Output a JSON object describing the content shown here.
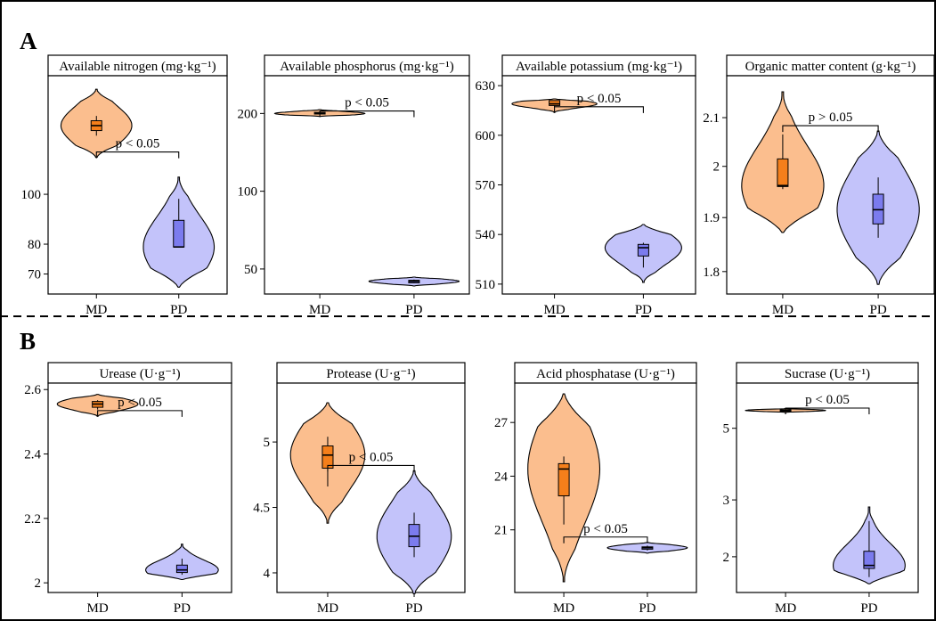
{
  "sections": [
    {
      "label": "A"
    },
    {
      "label": "B"
    }
  ],
  "colors": {
    "md_fill": "#FBBE8E",
    "pd_fill": "#C3C3FA",
    "md_box": "#F57F1B",
    "pd_box": "#7B7BEE",
    "line": "#000000"
  },
  "chart_data": [
    {
      "type": "violin",
      "title": "Available nitrogen (mg·kg⁻¹)",
      "categories": [
        "MD",
        "PD"
      ],
      "yticks": [
        70,
        80,
        100
      ],
      "yscale": "log",
      "ylim": [
        64,
        170
      ],
      "annotation": "p < 0.05",
      "series": [
        {
          "category": "MD",
          "violin_min": 118,
          "violin_max": 160,
          "box": {
            "min": 130,
            "q1": 133,
            "median": 136,
            "q3": 139,
            "max": 142
          }
        },
        {
          "category": "PD",
          "violin_min": 66,
          "violin_max": 108,
          "box": {
            "min": 79,
            "q1": 79,
            "median": 79,
            "q3": 89,
            "max": 98
          }
        }
      ]
    },
    {
      "type": "violin",
      "title": "Available phosphorus (mg·kg⁻¹)",
      "categories": [
        "MD",
        "PD"
      ],
      "yticks": [
        50,
        100,
        200
      ],
      "yscale": "log",
      "ylim": [
        40,
        280
      ],
      "annotation": "p < 0.05",
      "series": [
        {
          "category": "MD",
          "violin_min": 195,
          "violin_max": 207,
          "box": {
            "min": 199,
            "q1": 199,
            "median": 200,
            "q3": 202,
            "max": 203
          }
        },
        {
          "category": "PD",
          "violin_min": 43,
          "violin_max": 46.5,
          "box": {
            "min": 44,
            "q1": 44.2,
            "median": 44.8,
            "q3": 45.2,
            "max": 45.5
          }
        }
      ]
    },
    {
      "type": "violin",
      "title": "Available potassium (mg·kg⁻¹)",
      "categories": [
        "MD",
        "PD"
      ],
      "yticks": [
        510,
        540,
        570,
        600,
        630
      ],
      "ylim": [
        504,
        636
      ],
      "annotation": "p < 0.05",
      "series": [
        {
          "category": "MD",
          "violin_min": 614,
          "violin_max": 622,
          "box": {
            "min": 617,
            "q1": 618,
            "median": 619,
            "q3": 621,
            "max": 621
          }
        },
        {
          "category": "PD",
          "violin_min": 511,
          "violin_max": 546,
          "box": {
            "min": 520,
            "q1": 527,
            "median": 532,
            "q3": 534,
            "max": 535
          }
        }
      ]
    },
    {
      "type": "violin",
      "title": "Organic matter content (g·kg⁻¹)",
      "categories": [
        "MD",
        "PD"
      ],
      "yticks": [
        1.8,
        1.9,
        2.0,
        2.1
      ],
      "yscale": "log",
      "ylim": [
        1.76,
        2.19
      ],
      "annotation": "p > 0.05",
      "series": [
        {
          "category": "MD",
          "violin_min": 1.872,
          "violin_max": 2.155,
          "box": {
            "min": 1.955,
            "q1": 1.96,
            "median": 1.962,
            "q3": 2.015,
            "max": 2.065
          }
        },
        {
          "category": "PD",
          "violin_min": 1.777,
          "violin_max": 2.072,
          "box": {
            "min": 1.862,
            "q1": 1.888,
            "median": 1.915,
            "q3": 1.945,
            "max": 1.978
          }
        }
      ]
    },
    {
      "type": "violin",
      "title": "Urease (U·g⁻¹)",
      "categories": [
        "MD",
        "PD"
      ],
      "yticks": [
        2.0,
        2.2,
        2.4,
        2.6
      ],
      "ylim": [
        1.97,
        2.62
      ],
      "annotation": "p < 0.05",
      "series": [
        {
          "category": "MD",
          "violin_min": 2.518,
          "violin_max": 2.585,
          "box": {
            "min": 2.538,
            "q1": 2.545,
            "median": 2.555,
            "q3": 2.563,
            "max": 2.567
          }
        },
        {
          "category": "PD",
          "violin_min": 2.01,
          "violin_max": 2.12,
          "box": {
            "min": 2.025,
            "q1": 2.032,
            "median": 2.04,
            "q3": 2.055,
            "max": 2.075
          }
        }
      ]
    },
    {
      "type": "violin",
      "title": "Protease (U·g⁻¹)",
      "categories": [
        "MD",
        "PD"
      ],
      "yticks": [
        4.0,
        4.5,
        5.0
      ],
      "ylim": [
        3.85,
        5.45
      ],
      "annotation": "p < 0.05",
      "series": [
        {
          "category": "MD",
          "violin_min": 4.38,
          "violin_max": 5.3,
          "box": {
            "min": 4.66,
            "q1": 4.8,
            "median": 4.9,
            "q3": 4.97,
            "max": 5.04
          }
        },
        {
          "category": "PD",
          "violin_min": 3.84,
          "violin_max": 4.78,
          "box": {
            "min": 4.12,
            "q1": 4.2,
            "median": 4.28,
            "q3": 4.37,
            "max": 4.46
          }
        }
      ]
    },
    {
      "type": "violin",
      "title": "Acid phosphatase (U·g⁻¹)",
      "categories": [
        "MD",
        "PD"
      ],
      "yticks": [
        21,
        24,
        27
      ],
      "ylim": [
        17.5,
        29.2
      ],
      "annotation": "p < 0.05",
      "series": [
        {
          "category": "MD",
          "violin_min": 18.1,
          "violin_max": 28.6,
          "box": {
            "min": 21.3,
            "q1": 22.9,
            "median": 24.4,
            "q3": 24.7,
            "max": 25.1
          }
        },
        {
          "category": "PD",
          "violin_min": 19.7,
          "violin_max": 20.3,
          "box": {
            "min": 19.85,
            "q1": 19.92,
            "median": 20.0,
            "q3": 20.05,
            "max": 20.12
          }
        }
      ]
    },
    {
      "type": "violin",
      "title": "Sucrase (U·g⁻¹)",
      "categories": [
        "MD",
        "PD"
      ],
      "yticks": [
        2,
        3,
        5
      ],
      "yscale": "log",
      "ylim": [
        1.55,
        6.9
      ],
      "annotation": "p < 0.05",
      "series": [
        {
          "category": "MD",
          "violin_min": 5.6,
          "violin_max": 5.75,
          "box": {
            "min": 5.63,
            "q1": 5.65,
            "median": 5.68,
            "q3": 5.7,
            "max": 5.72
          }
        },
        {
          "category": "PD",
          "violin_min": 1.65,
          "violin_max": 2.85,
          "box": {
            "min": 1.73,
            "q1": 1.84,
            "median": 1.88,
            "q3": 2.08,
            "max": 2.58
          }
        }
      ]
    }
  ]
}
